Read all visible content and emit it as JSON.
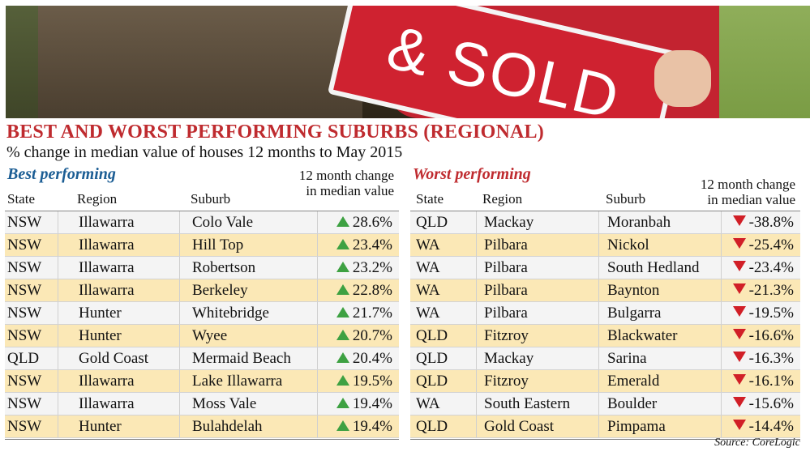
{
  "photo": {
    "sign_text": "& SOLD"
  },
  "header": {
    "title": "BEST AND WORST PERFORMING SUBURBS (REGIONAL)",
    "subtitle": "% change in median value of houses 12 months to May 2015"
  },
  "best": {
    "title": "Best performing",
    "columns": {
      "state": "State",
      "region": "Region",
      "suburb": "Suburb",
      "change_line1": "12 month change",
      "change_line2": "in median value"
    },
    "rows": [
      {
        "state": "NSW",
        "region": "Illawarra",
        "suburb": "Colo Vale",
        "change": "28.6%"
      },
      {
        "state": "NSW",
        "region": "Illawarra",
        "suburb": "Hill Top",
        "change": "23.4%"
      },
      {
        "state": "NSW",
        "region": "Illawarra",
        "suburb": "Robertson",
        "change": "23.2%"
      },
      {
        "state": "NSW",
        "region": "Illawarra",
        "suburb": "Berkeley",
        "change": "22.8%"
      },
      {
        "state": "NSW",
        "region": "Hunter",
        "suburb": "Whitebridge",
        "change": "21.7%"
      },
      {
        "state": "NSW",
        "region": "Hunter",
        "suburb": "Wyee",
        "change": "20.7%"
      },
      {
        "state": "QLD",
        "region": "Gold Coast",
        "suburb": "Mermaid Beach",
        "change": "20.4%"
      },
      {
        "state": "NSW",
        "region": "Illawarra",
        "suburb": "Lake Illawarra",
        "change": "19.5%"
      },
      {
        "state": "NSW",
        "region": "Illawarra",
        "suburb": "Moss Vale",
        "change": "19.4%"
      },
      {
        "state": "NSW",
        "region": "Hunter",
        "suburb": "Bulahdelah",
        "change": "19.4%"
      }
    ]
  },
  "worst": {
    "title": "Worst performing",
    "columns": {
      "state": "State",
      "region": "Region",
      "suburb": "Suburb",
      "change_line1": "12 month change",
      "change_line2": "in median value"
    },
    "rows": [
      {
        "state": "QLD",
        "region": "Mackay",
        "suburb": "Moranbah",
        "change": "-38.8%"
      },
      {
        "state": "WA",
        "region": "Pilbara",
        "suburb": "Nickol",
        "change": "-25.4%"
      },
      {
        "state": "WA",
        "region": "Pilbara",
        "suburb": "South Hedland",
        "change": "-23.4%"
      },
      {
        "state": "WA",
        "region": "Pilbara",
        "suburb": "Baynton",
        "change": "-21.3%"
      },
      {
        "state": "WA",
        "region": "Pilbara",
        "suburb": "Bulgarra",
        "change": "-19.5%"
      },
      {
        "state": "QLD",
        "region": "Fitzroy",
        "suburb": "Blackwater",
        "change": "-16.6%"
      },
      {
        "state": "QLD",
        "region": "Mackay",
        "suburb": "Sarina",
        "change": "-16.3%"
      },
      {
        "state": "QLD",
        "region": "Fitzroy",
        "suburb": "Emerald",
        "change": "-16.1%"
      },
      {
        "state": "WA",
        "region": "South Eastern",
        "suburb": "Boulder",
        "change": "-15.6%"
      },
      {
        "state": "QLD",
        "region": "Gold Coast",
        "suburb": "Pimpama",
        "change": "-14.4%"
      }
    ]
  },
  "source": "Source: CoreLogic",
  "colors": {
    "title_red": "#bf2b2f",
    "best_blue": "#1b5d94",
    "up_green": "#3ea142",
    "down_red": "#d11f27",
    "row_alt": "#fbe8b6",
    "row_plain": "#f4f4f4"
  }
}
